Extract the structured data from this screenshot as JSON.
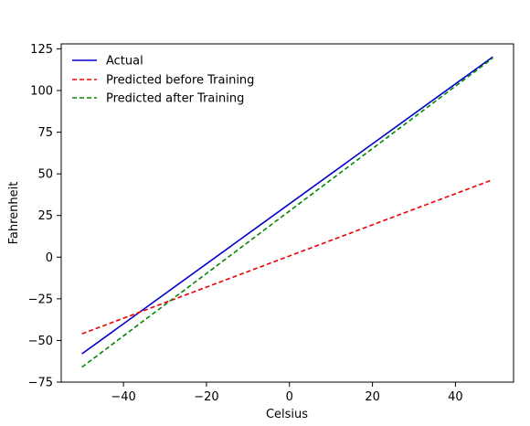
{
  "chart_data": {
    "type": "line",
    "title": "",
    "xlabel": "Celsius",
    "ylabel": "Fahrenheit",
    "xlim": [
      -55,
      54
    ],
    "ylim": [
      -75,
      128
    ],
    "grid": false,
    "legend_position": "top-left",
    "xticks": [
      -40,
      -20,
      0,
      20,
      40
    ],
    "yticks": [
      -75,
      -50,
      -25,
      0,
      25,
      50,
      75,
      100,
      125
    ],
    "series": [
      {
        "name": "Actual",
        "color": "#0000cc",
        "style": "solid",
        "x": [
          -50,
          49
        ],
        "y": [
          -58,
          120.2
        ]
      },
      {
        "name": "Predicted before Training",
        "color": "#ee0000",
        "style": "dashed",
        "x": [
          -50,
          49
        ],
        "y": [
          -46,
          46.5
        ]
      },
      {
        "name": "Predicted after Training",
        "color": "#008800",
        "style": "dashed",
        "x": [
          -50,
          49
        ],
        "y": [
          -66,
          119.5
        ]
      }
    ]
  }
}
